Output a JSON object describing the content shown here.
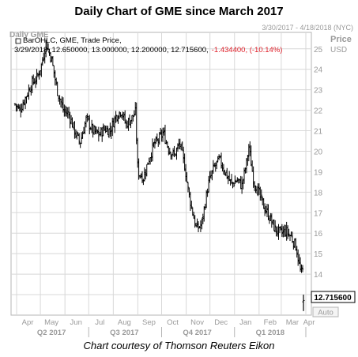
{
  "title": "Daily Chart of GME since March 2017",
  "header": {
    "instrument": "Daily GME",
    "date_range": "3/30/2017 - 4/18/2018 (NYC)",
    "price_label": "Price",
    "currency": "USD",
    "study_label": "BarOHLC, GME, Trade Price,",
    "ohlc_text": "3/29/2018, 12.650000, 13.000000, 12.200000, 12.715600,",
    "change_text": "-1.434400, (-10.14%)"
  },
  "last_price_label": "12.715600",
  "auto_label": "Auto",
  "footer": "Chart courtesy of Thomson Reuters Eikon",
  "colors": {
    "bar": "#000000",
    "grid": "#d8d8d8",
    "change": "#e0202a",
    "axis_text": "#9a9a9a",
    "frame": "#b5b5b5"
  },
  "chart_data": {
    "type": "ohlc",
    "title": "Daily Chart of GME since March 2017",
    "y_axis": {
      "position": "right",
      "ylim": [
        12,
        25.8
      ],
      "ticks": [
        13,
        14,
        15,
        16,
        17,
        18,
        19,
        20,
        21,
        22,
        23,
        24,
        25
      ]
    },
    "x_axis": {
      "months": [
        "Apr",
        "May",
        "Jun",
        "Jul",
        "Aug",
        "Sep",
        "Oct",
        "Nov",
        "Dec",
        "Jan",
        "Feb",
        "Mar",
        "Apr"
      ],
      "quarters": [
        "Q2 2017",
        "Q3 2017",
        "Q4 2017",
        "Q1 2018"
      ]
    },
    "grid": true,
    "series": [
      {
        "values": [
          {
            "date": "2017-03-30",
            "close": 22.3
          },
          {
            "date": "2017-04-05",
            "close": 22.0
          },
          {
            "date": "2017-04-12",
            "close": 22.6
          },
          {
            "date": "2017-04-20",
            "close": 23.3
          },
          {
            "date": "2017-04-27",
            "close": 23.6
          },
          {
            "date": "2017-05-03",
            "close": 24.3
          },
          {
            "date": "2017-05-08",
            "close": 25.3
          },
          {
            "date": "2017-05-15",
            "close": 24.5
          },
          {
            "date": "2017-05-22",
            "close": 23.0
          },
          {
            "date": "2017-05-30",
            "close": 22.0
          },
          {
            "date": "2017-06-06",
            "close": 21.8
          },
          {
            "date": "2017-06-14",
            "close": 20.9
          },
          {
            "date": "2017-06-20",
            "close": 20.4
          },
          {
            "date": "2017-06-28",
            "close": 21.6
          },
          {
            "date": "2017-07-06",
            "close": 21.0
          },
          {
            "date": "2017-07-14",
            "close": 20.8
          },
          {
            "date": "2017-07-21",
            "close": 21.1
          },
          {
            "date": "2017-07-28",
            "close": 21.0
          },
          {
            "date": "2017-08-04",
            "close": 21.7
          },
          {
            "date": "2017-08-11",
            "close": 22.0
          },
          {
            "date": "2017-08-17",
            "close": 21.3
          },
          {
            "date": "2017-08-24",
            "close": 21.6
          },
          {
            "date": "2017-08-29",
            "close": 21.9
          },
          {
            "date": "2017-09-01",
            "close": 19.0
          },
          {
            "date": "2017-09-08",
            "close": 18.7
          },
          {
            "date": "2017-09-14",
            "close": 19.5
          },
          {
            "date": "2017-09-21",
            "close": 20.3
          },
          {
            "date": "2017-09-28",
            "close": 20.6
          },
          {
            "date": "2017-10-03",
            "close": 20.9
          },
          {
            "date": "2017-10-10",
            "close": 20.1
          },
          {
            "date": "2017-10-17",
            "close": 19.8
          },
          {
            "date": "2017-10-24",
            "close": 20.4
          },
          {
            "date": "2017-10-31",
            "close": 19.1
          },
          {
            "date": "2017-11-03",
            "close": 18.2
          },
          {
            "date": "2017-11-08",
            "close": 17.2
          },
          {
            "date": "2017-11-14",
            "close": 16.2
          },
          {
            "date": "2017-11-20",
            "close": 16.4
          },
          {
            "date": "2017-11-22",
            "close": 16.8
          },
          {
            "date": "2017-11-29",
            "close": 18.4
          },
          {
            "date": "2017-12-06",
            "close": 19.2
          },
          {
            "date": "2017-12-13",
            "close": 19.6
          },
          {
            "date": "2017-12-20",
            "close": 19.0
          },
          {
            "date": "2017-12-28",
            "close": 18.4
          },
          {
            "date": "2018-01-05",
            "close": 18.6
          },
          {
            "date": "2018-01-10",
            "close": 18.3
          },
          {
            "date": "2018-01-16",
            "close": 19.4
          },
          {
            "date": "2018-01-19",
            "close": 20.2
          },
          {
            "date": "2018-01-25",
            "close": 18.6
          },
          {
            "date": "2018-01-31",
            "close": 18.0
          },
          {
            "date": "2018-02-07",
            "close": 17.3
          },
          {
            "date": "2018-02-14",
            "close": 16.8
          },
          {
            "date": "2018-02-21",
            "close": 16.2
          },
          {
            "date": "2018-02-28",
            "close": 16.0
          },
          {
            "date": "2018-03-07",
            "close": 16.1
          },
          {
            "date": "2018-03-14",
            "close": 15.8
          },
          {
            "date": "2018-03-20",
            "close": 15.3
          },
          {
            "date": "2018-03-23",
            "close": 14.6
          },
          {
            "date": "2018-03-26",
            "close": 14.0
          },
          {
            "date": "2018-03-28",
            "close": 14.15
          },
          {
            "date": "2018-03-29",
            "close": 12.7156
          }
        ]
      }
    ]
  }
}
